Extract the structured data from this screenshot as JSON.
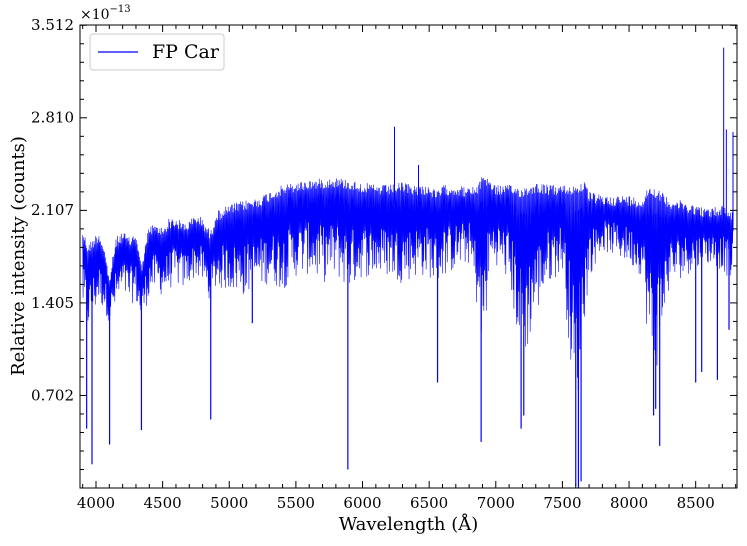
{
  "chart_data": {
    "type": "line",
    "title": "",
    "xlabel": "Wavelength (Å)",
    "ylabel": "Relative intensity (counts)",
    "y_scale_factor_base": "×10",
    "y_scale_factor_exp": "−13",
    "xlim": [
      3880,
      8810
    ],
    "ylim": [
      0.0,
      3.512
    ],
    "x_ticks": [
      4000,
      4500,
      5000,
      5500,
      6000,
      6500,
      7000,
      7500,
      8000,
      8500
    ],
    "x_tick_labels": [
      "4000",
      "4500",
      "5000",
      "5500",
      "6000",
      "6500",
      "7000",
      "7500",
      "8000",
      "8500"
    ],
    "y_ticks": [
      0.702,
      1.405,
      2.107,
      2.81,
      3.512
    ],
    "y_tick_labels": [
      "0.702",
      "1.405",
      "2.107",
      "2.810",
      "3.512"
    ],
    "legend_position": "top-left",
    "grid": false,
    "series": [
      {
        "name": "FP Car",
        "color": "#0000ff",
        "upper": [
          [
            3900,
            1.97
          ],
          [
            3940,
            1.85
          ],
          [
            3980,
            1.9
          ],
          [
            4020,
            1.95
          ],
          [
            4060,
            1.85
          ],
          [
            4100,
            1.6
          ],
          [
            4150,
            1.9
          ],
          [
            4200,
            1.95
          ],
          [
            4250,
            1.9
          ],
          [
            4300,
            1.95
          ],
          [
            4340,
            1.7
          ],
          [
            4400,
            2.0
          ],
          [
            4450,
            2.0
          ],
          [
            4500,
            1.98
          ],
          [
            4550,
            2.05
          ],
          [
            4600,
            2.05
          ],
          [
            4650,
            2.02
          ],
          [
            4700,
            2.03
          ],
          [
            4750,
            2.08
          ],
          [
            4800,
            2.05
          ],
          [
            4860,
            1.95
          ],
          [
            4900,
            2.1
          ],
          [
            5000,
            2.15
          ],
          [
            5100,
            2.18
          ],
          [
            5200,
            2.2
          ],
          [
            5300,
            2.25
          ],
          [
            5400,
            2.3
          ],
          [
            5500,
            2.32
          ],
          [
            5600,
            2.34
          ],
          [
            5700,
            2.35
          ],
          [
            5800,
            2.36
          ],
          [
            5900,
            2.34
          ],
          [
            6000,
            2.32
          ],
          [
            6100,
            2.3
          ],
          [
            6200,
            2.3
          ],
          [
            6300,
            2.32
          ],
          [
            6400,
            2.3
          ],
          [
            6500,
            2.3
          ],
          [
            6560,
            2.25
          ],
          [
            6600,
            2.3
          ],
          [
            6700,
            2.3
          ],
          [
            6800,
            2.28
          ],
          [
            6870,
            2.3
          ],
          [
            6900,
            2.4
          ],
          [
            6950,
            2.35
          ],
          [
            7000,
            2.3
          ],
          [
            7100,
            2.3
          ],
          [
            7200,
            2.28
          ],
          [
            7300,
            2.32
          ],
          [
            7400,
            2.3
          ],
          [
            7500,
            2.3
          ],
          [
            7600,
            2.3
          ],
          [
            7660,
            2.33
          ],
          [
            7700,
            2.25
          ],
          [
            7800,
            2.22
          ],
          [
            7900,
            2.22
          ],
          [
            8000,
            2.22
          ],
          [
            8100,
            2.2
          ],
          [
            8150,
            2.3
          ],
          [
            8200,
            2.28
          ],
          [
            8300,
            2.2
          ],
          [
            8400,
            2.18
          ],
          [
            8500,
            2.15
          ],
          [
            8600,
            2.12
          ],
          [
            8700,
            2.15
          ],
          [
            8780,
            2.1
          ]
        ],
        "lower": [
          [
            3900,
            1.35
          ],
          [
            3940,
            1.2
          ],
          [
            3980,
            1.3
          ],
          [
            4020,
            1.4
          ],
          [
            4060,
            1.35
          ],
          [
            4100,
            1.25
          ],
          [
            4150,
            1.35
          ],
          [
            4200,
            1.45
          ],
          [
            4250,
            1.4
          ],
          [
            4300,
            1.4
          ],
          [
            4340,
            1.25
          ],
          [
            4400,
            1.45
          ],
          [
            4450,
            1.5
          ],
          [
            4500,
            1.45
          ],
          [
            4550,
            1.5
          ],
          [
            4600,
            1.55
          ],
          [
            4650,
            1.5
          ],
          [
            4700,
            1.55
          ],
          [
            4750,
            1.6
          ],
          [
            4800,
            1.55
          ],
          [
            4860,
            1.35
          ],
          [
            4900,
            1.5
          ],
          [
            5000,
            1.5
          ],
          [
            5100,
            1.45
          ],
          [
            5200,
            1.5
          ],
          [
            5300,
            1.55
          ],
          [
            5400,
            1.5
          ],
          [
            5500,
            1.6
          ],
          [
            5600,
            1.62
          ],
          [
            5700,
            1.55
          ],
          [
            5800,
            1.6
          ],
          [
            5900,
            1.5
          ],
          [
            6000,
            1.6
          ],
          [
            6100,
            1.6
          ],
          [
            6200,
            1.6
          ],
          [
            6300,
            1.55
          ],
          [
            6400,
            1.6
          ],
          [
            6500,
            1.6
          ],
          [
            6560,
            1.5
          ],
          [
            6600,
            1.6
          ],
          [
            6700,
            1.65
          ],
          [
            6800,
            1.7
          ],
          [
            6870,
            1.3
          ],
          [
            6900,
            0.9
          ],
          [
            6950,
            1.6
          ],
          [
            7000,
            1.7
          ],
          [
            7100,
            1.55
          ],
          [
            7200,
            0.9
          ],
          [
            7300,
            1.3
          ],
          [
            7400,
            1.55
          ],
          [
            7500,
            1.65
          ],
          [
            7600,
            0.5
          ],
          [
            7660,
            1.2
          ],
          [
            7700,
            1.6
          ],
          [
            7800,
            1.8
          ],
          [
            7900,
            1.75
          ],
          [
            8000,
            1.7
          ],
          [
            8100,
            1.6
          ],
          [
            8150,
            1.0
          ],
          [
            8200,
            0.85
          ],
          [
            8300,
            1.5
          ],
          [
            8400,
            1.6
          ],
          [
            8500,
            1.65
          ],
          [
            8600,
            1.7
          ],
          [
            8700,
            1.65
          ],
          [
            8780,
            1.55
          ]
        ],
        "dips": [
          [
            3930,
            0.45
          ],
          [
            3970,
            0.18
          ],
          [
            4102,
            0.33
          ],
          [
            4341,
            0.44
          ],
          [
            4861,
            0.52
          ],
          [
            5173,
            1.25
          ],
          [
            5890,
            0.14
          ],
          [
            6563,
            0.8
          ],
          [
            6890,
            0.35
          ],
          [
            7190,
            0.45
          ],
          [
            7210,
            0.55
          ],
          [
            7600,
            0.02
          ],
          [
            7620,
            0.0
          ],
          [
            7640,
            0.05
          ],
          [
            8184,
            0.55
          ],
          [
            8200,
            0.6
          ],
          [
            8230,
            0.32
          ],
          [
            8500,
            0.8
          ],
          [
            8545,
            0.88
          ],
          [
            8663,
            0.82
          ],
          [
            8750,
            1.2
          ]
        ],
        "spikes": [
          [
            6240,
            2.74
          ],
          [
            6420,
            2.45
          ],
          [
            8710,
            3.34
          ],
          [
            8730,
            2.72
          ],
          [
            8780,
            2.7
          ]
        ]
      }
    ]
  }
}
